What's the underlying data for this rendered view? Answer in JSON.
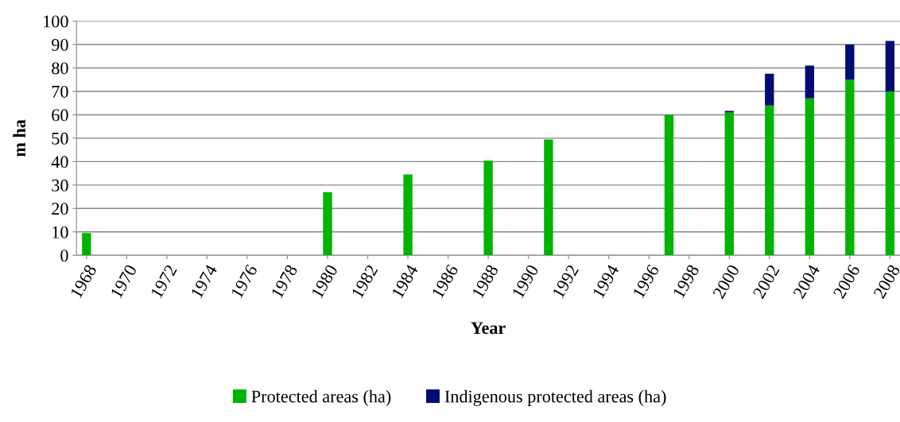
{
  "chart_data": {
    "type": "bar",
    "stacked": true,
    "xlabel": "Year",
    "ylabel": "m ha",
    "categories": [
      "1968",
      null,
      "1970",
      null,
      "1972",
      null,
      "1974",
      null,
      "1976",
      null,
      "1978",
      null,
      "1980",
      null,
      "1982",
      null,
      "1984",
      null,
      "1986",
      null,
      "1988",
      null,
      "1990",
      null,
      "1992",
      null,
      "1994",
      null,
      "1996",
      null,
      "1998",
      null,
      "2000",
      null,
      "2002",
      null,
      "2004",
      null,
      "2006",
      null,
      "2008"
    ],
    "series": [
      {
        "name": "Protected areas (ha)",
        "color": "#00b400",
        "values": [
          9.5,
          null,
          null,
          null,
          null,
          null,
          null,
          null,
          null,
          null,
          null,
          null,
          27,
          null,
          null,
          null,
          34.5,
          null,
          null,
          null,
          40.5,
          null,
          null,
          49.5,
          null,
          null,
          null,
          null,
          null,
          60,
          null,
          null,
          61,
          null,
          64,
          null,
          67,
          null,
          75,
          null,
          70
        ]
      },
      {
        "name": "Indigenous protected areas (ha)",
        "color": "#000c73",
        "values": [
          null,
          null,
          null,
          null,
          null,
          null,
          null,
          null,
          null,
          null,
          null,
          null,
          null,
          null,
          null,
          null,
          null,
          null,
          null,
          null,
          null,
          null,
          null,
          null,
          null,
          null,
          null,
          null,
          null,
          null,
          null,
          null,
          0.7,
          null,
          13.5,
          null,
          14,
          null,
          15,
          null,
          21.5
        ]
      }
    ],
    "ylim": [
      0,
      100
    ],
    "yticks": [
      0,
      10,
      20,
      30,
      40,
      50,
      60,
      70,
      80,
      90,
      100
    ],
    "grid": "y",
    "legend": "bottom"
  }
}
